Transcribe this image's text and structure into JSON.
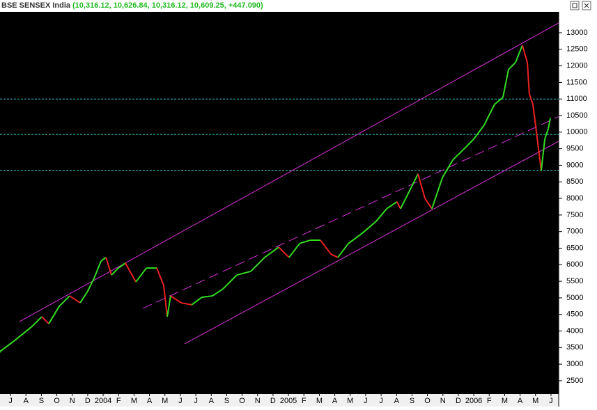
{
  "chart_data": {
    "type": "line",
    "title": "BSE  SENSEX India",
    "subtitle": "(10,316.12, 10,626.84, 10,316.12, 10,609.25, +447.090)",
    "x": [
      -0.68,
      0.23,
      1.35,
      2.03,
      2.48,
      3.16,
      3.83,
      4.51,
      4.96,
      5.41,
      5.86,
      6.18,
      6.54,
      6.99,
      7.44,
      8.12,
      8.8,
      9.47,
      9.92,
      10.15,
      10.37,
      11.05,
      11.73,
      12.4,
      13.08,
      13.76,
      14.66,
      15.56,
      16.46,
      17.37,
      18.04,
      18.72,
      19.4,
      20.07,
      20.75,
      21.2,
      21.88,
      22.78,
      23.68,
      24.36,
      25.03,
      25.26,
      25.94,
      26.39,
      26.84,
      27.29,
      27.97,
      28.64,
      29.32,
      30.0,
      30.67,
      31.35,
      31.89,
      32.25,
      32.7,
      33.15,
      33.47,
      33.6,
      33.83,
      34.06,
      34.37,
      34.6,
      34.83,
      34.96
    ],
    "series": [
      {
        "name": "BSE  SENSEX India",
        "up_color": "#33dd22",
        "down_color": "#ee2222",
        "values": [
          3380,
          3700,
          4120,
          4430,
          4220,
          4750,
          5060,
          4850,
          5170,
          5590,
          6110,
          6220,
          5690,
          5900,
          6050,
          5480,
          5900,
          5900,
          5380,
          4430,
          5060,
          4850,
          4790,
          5020,
          5060,
          5270,
          5690,
          5800,
          6220,
          6530,
          6220,
          6640,
          6740,
          6740,
          6320,
          6220,
          6640,
          6950,
          7310,
          7690,
          7900,
          7690,
          8320,
          8740,
          8000,
          7690,
          8630,
          9160,
          9470,
          9790,
          10210,
          10840,
          11050,
          11890,
          12100,
          12620,
          12100,
          11150,
          10840,
          10000,
          8840,
          9790,
          10110,
          10420
        ]
      }
    ],
    "xlim": [
      -0.68,
      35.5
    ],
    "ylim": [
      2100,
      13630
    ],
    "yticks": [
      2500,
      3000,
      3500,
      4000,
      4500,
      5000,
      5500,
      6000,
      6500,
      7000,
      7500,
      8000,
      8500,
      9000,
      9500,
      10000,
      10500,
      11000,
      11500,
      12000,
      12500,
      13000
    ],
    "xticks": [
      {
        "value": 0,
        "label": "J"
      },
      {
        "value": 1,
        "label": "A"
      },
      {
        "value": 2,
        "label": "S"
      },
      {
        "value": 3,
        "label": "O"
      },
      {
        "value": 4,
        "label": "N"
      },
      {
        "value": 5,
        "label": "D"
      },
      {
        "value": 6,
        "label": "2004"
      },
      {
        "value": 7,
        "label": "F"
      },
      {
        "value": 8,
        "label": "M"
      },
      {
        "value": 9,
        "label": "A"
      },
      {
        "value": 10,
        "label": "M"
      },
      {
        "value": 11,
        "label": "J"
      },
      {
        "value": 12,
        "label": "J"
      },
      {
        "value": 13,
        "label": "A"
      },
      {
        "value": 14,
        "label": "S"
      },
      {
        "value": 15,
        "label": "O"
      },
      {
        "value": 16,
        "label": "N"
      },
      {
        "value": 17,
        "label": "D"
      },
      {
        "value": 18,
        "label": "2005"
      },
      {
        "value": 19,
        "label": "F"
      },
      {
        "value": 20,
        "label": "M"
      },
      {
        "value": 21,
        "label": "A"
      },
      {
        "value": 22,
        "label": "M"
      },
      {
        "value": 23,
        "label": "J"
      },
      {
        "value": 24,
        "label": "J"
      },
      {
        "value": 25,
        "label": "A"
      },
      {
        "value": 26,
        "label": "S"
      },
      {
        "value": 27,
        "label": "O"
      },
      {
        "value": 28,
        "label": "N"
      },
      {
        "value": 29,
        "label": "D"
      },
      {
        "value": 30,
        "label": "2006"
      },
      {
        "value": 31,
        "label": "F"
      },
      {
        "value": 32,
        "label": "M"
      },
      {
        "value": 33,
        "label": "A"
      },
      {
        "value": 34,
        "label": "M"
      },
      {
        "value": 35,
        "label": "J"
      }
    ],
    "reference_lines": {
      "color": "#33cccc",
      "values": [
        11000,
        9930,
        8850
      ]
    },
    "trend_lines": [
      {
        "color": "#dd33dd",
        "style": "solid",
        "x": [
          0.59,
          35.5
        ],
        "y": [
          4285,
          13294
        ]
      },
      {
        "color": "#dd33dd",
        "style": "dashed",
        "x": [
          8.57,
          35.5
        ],
        "y": [
          4684,
          10467
        ]
      },
      {
        "color": "#dd33dd",
        "style": "solid",
        "x": [
          11.28,
          35.5
        ],
        "y": [
          3613,
          9724
        ]
      }
    ]
  }
}
